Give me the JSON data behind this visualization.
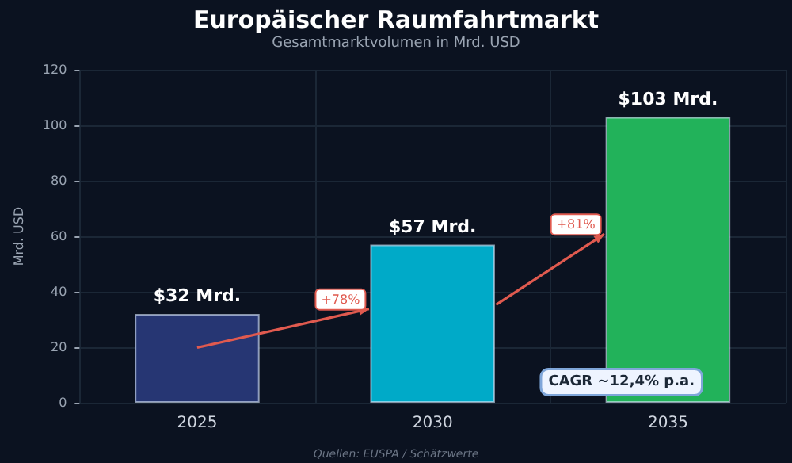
{
  "chart_data": {
    "type": "bar",
    "title": "Europäischer Raumfahrtmarkt",
    "subtitle": "Gesamtmarktvolumen in Mrd. USD",
    "ylabel": "Mrd. USD",
    "categories": [
      "2025",
      "2030",
      "2035"
    ],
    "values": [
      32,
      57,
      103
    ],
    "colors": [
      "#263673",
      "#00aac8",
      "#22b25a"
    ],
    "value_labels": [
      "$32 Mrd.",
      "$57 Mrd.",
      "$103 Mrd."
    ],
    "ylim": [
      0,
      120
    ],
    "yticks": [
      0,
      20,
      40,
      60,
      80,
      100,
      120
    ],
    "grid": true,
    "annotations": [
      "+78%",
      "+81%",
      "CAGR ~12,4% p.a.",
      "Quellen: EUSPA / Schätzwerte"
    ]
  }
}
